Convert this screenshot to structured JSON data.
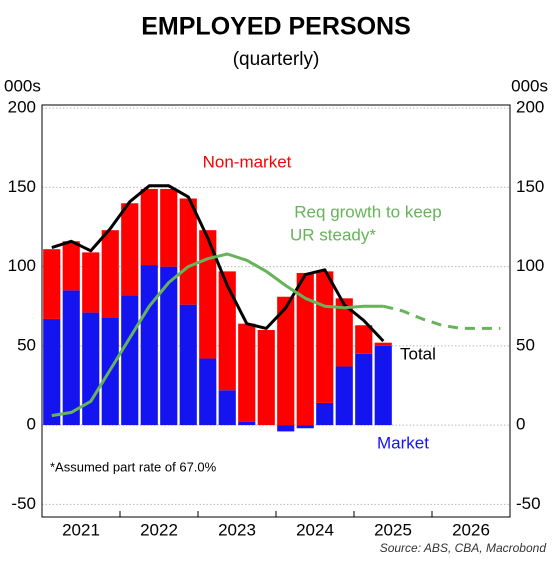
{
  "chart_data": {
    "type": "bar",
    "title": "EMPLOYED PERSONS",
    "subtitle": "(quarterly)",
    "y_unit_label": "000s",
    "y2_unit_label": "000s",
    "categories": [
      null,
      null,
      null,
      null,
      null,
      null,
      null,
      null,
      null,
      null,
      null,
      null,
      null,
      null,
      null,
      null,
      null,
      null,
      null,
      null,
      null,
      null,
      null,
      null
    ],
    "xtick_labels": [
      "2021",
      "2022",
      "2023",
      "2024",
      "2025",
      "2026"
    ],
    "ylim": [
      -58,
      202
    ],
    "yticks": [
      -50,
      0,
      50,
      100,
      150,
      200
    ],
    "y2lim": [
      -58,
      202
    ],
    "y2ticks": [
      -50,
      0,
      50,
      100,
      150,
      200
    ],
    "grid": true,
    "series": [
      {
        "name": "Market",
        "kind": "bar",
        "color": "#1414f0",
        "values": [
          67,
          85,
          71,
          68,
          82,
          101,
          100,
          76,
          42,
          22,
          2,
          0,
          -4,
          -2,
          14,
          37,
          45,
          50,
          null,
          null,
          null,
          null,
          null,
          null
        ]
      },
      {
        "name": "Non-market",
        "kind": "bar",
        "color": "#ff0000",
        "values": [
          44,
          31,
          38,
          55,
          58,
          48,
          49,
          67,
          81,
          75,
          62,
          60,
          81,
          96,
          83,
          43,
          18,
          2,
          null,
          null,
          null,
          null,
          null,
          null
        ]
      },
      {
        "name": "Total",
        "kind": "line",
        "color": "#000000",
        "dash": false,
        "values": [
          112,
          116,
          110,
          124,
          141,
          151,
          151,
          144,
          118,
          88,
          64,
          61,
          74,
          95,
          98,
          76,
          66,
          53,
          null,
          null,
          null,
          null,
          null,
          null
        ]
      },
      {
        "name": "Req growth to keep UR steady*",
        "kind": "line",
        "color": "#66b35a",
        "dash": false,
        "values": [
          6,
          8,
          15,
          35,
          55,
          75,
          90,
          100,
          105,
          108,
          104,
          97,
          88,
          80,
          75,
          74,
          75,
          75,
          null,
          null,
          null,
          null,
          null,
          null
        ]
      },
      {
        "name": "Req growth projection",
        "kind": "line",
        "color": "#66b35a",
        "dash": true,
        "values": [
          null,
          null,
          null,
          null,
          null,
          null,
          null,
          null,
          null,
          null,
          null,
          null,
          null,
          null,
          null,
          null,
          null,
          75,
          72,
          67,
          63,
          61,
          61,
          61
        ]
      }
    ],
    "annotations": {
      "non_market": "Non-market",
      "req_growth": [
        "Req growth to keep",
        "UR steady*"
      ],
      "total": "Total",
      "market": "Market",
      "note": "*Assumed part rate of 67.0%",
      "source": "Source: ABS, CBA, Macrobond"
    }
  }
}
